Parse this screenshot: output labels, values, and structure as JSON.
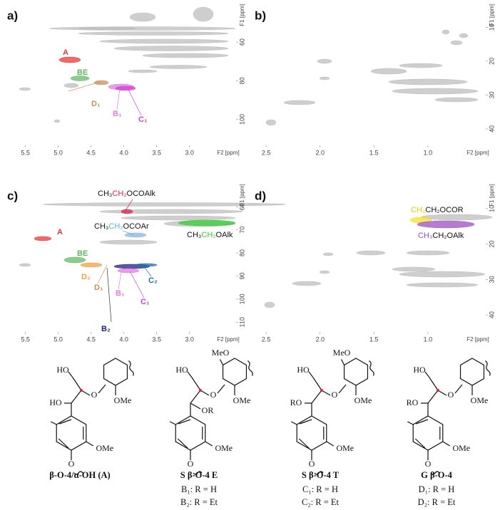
{
  "panels": [
    {
      "label": "a)",
      "xlabel": "F2 [ppm]",
      "ylabel": "F1 [ppm]",
      "xlim": [
        5.8,
        2.3
      ],
      "ylim": [
        40,
        112
      ],
      "xticks": [
        5.5,
        {
          "value": 5,
          "label": "5.0"
        },
        4.5,
        {
          "value": 4,
          "label": "4.0"
        },
        3.5,
        {
          "value": 3,
          "label": "3.0"
        }
      ],
      "yticks": [
        60,
        80,
        100
      ],
      "annotations": [
        [
          "A"
        ],
        [
          "BE"
        ],
        [
          "D₁"
        ],
        [
          "B₁"
        ],
        [
          "C₁"
        ]
      ]
    },
    {
      "label": "b)",
      "xlabel": "F2 [ppm]",
      "ylabel": "F1 [ppm]",
      "xlim": [
        2.62,
        0.47
      ],
      "ylim": [
        3,
        44
      ],
      "xticks": [
        2.5,
        {
          "value": 2,
          "label": "2.0"
        },
        1.5,
        {
          "value": 1,
          "label": "1.0"
        }
      ],
      "yticks": [
        10,
        20,
        30,
        40
      ],
      "annotations": []
    },
    {
      "label": "c)",
      "xlabel": "F2 [ppm]",
      "ylabel": "F1 [ppm]",
      "xlim": [
        5.8,
        2.3
      ],
      "ylim": [
        50,
        113
      ],
      "xticks": [
        5.5,
        {
          "value": 5,
          "label": "5.0"
        },
        4.5,
        {
          "value": 4,
          "label": "4.0"
        },
        3.5,
        {
          "value": 3,
          "label": "3.0"
        }
      ],
      "yticks": [
        60,
        70,
        80,
        90,
        100,
        110
      ],
      "annotations": [
        [
          "CH₃",
          "CH₂",
          "OCOAlk"
        ],
        [
          "CH₃",
          "CH₂",
          "OCOAr"
        ],
        [
          "CH₃",
          "CH₂",
          "OAlk"
        ],
        [
          "A"
        ],
        [
          "BE"
        ],
        [
          "D₂"
        ],
        [
          "D₁"
        ],
        [
          "B₁"
        ],
        [
          "B₂"
        ],
        [
          "C₂"
        ],
        [
          "C₁"
        ]
      ]
    },
    {
      "label": "d)",
      "xlabel": "F2 [ppm]",
      "ylabel": "F1 [ppm]",
      "xlim": [
        2.62,
        0.47
      ],
      "ylim": [
        3,
        44
      ],
      "xticks": [
        2.5,
        {
          "value": 2,
          "label": "2.0"
        },
        1.5,
        {
          "value": 1,
          "label": "1.0"
        }
      ],
      "yticks": [
        10,
        20,
        30,
        40
      ],
      "annotations": [
        [
          "CH₃",
          "CH₂OCOR"
        ],
        [
          "CH₃",
          "CH₂OAlk"
        ]
      ]
    }
  ],
  "structures": [
    {
      "labels": [
        "HO",
        "HO",
        "O",
        "OMe",
        "OMe",
        "O"
      ],
      "title": "β-O-4/α-OH (A)",
      "lines": []
    },
    {
      "labels": [
        "HO",
        "OR",
        "O",
        "MeO",
        "OMe",
        "OMe",
        "O"
      ],
      "title": "S β-O-4 E",
      "lines": [
        "B₁: R = H",
        "B₂: R = Et"
      ]
    },
    {
      "labels": [
        "HO",
        "RO",
        "O",
        "MeO",
        "OMe",
        "OMe",
        "O"
      ],
      "title": "S β-O-4 T",
      "lines": [
        "C₁: R = H",
        "C₂: R = Et"
      ]
    },
    {
      "labels": [
        "HO",
        "RO",
        "O",
        "OMe",
        "OMe",
        "O"
      ],
      "title": "G β-O-4",
      "lines": [
        "D₁: R = H",
        "D₂: R = Et"
      ]
    }
  ]
}
